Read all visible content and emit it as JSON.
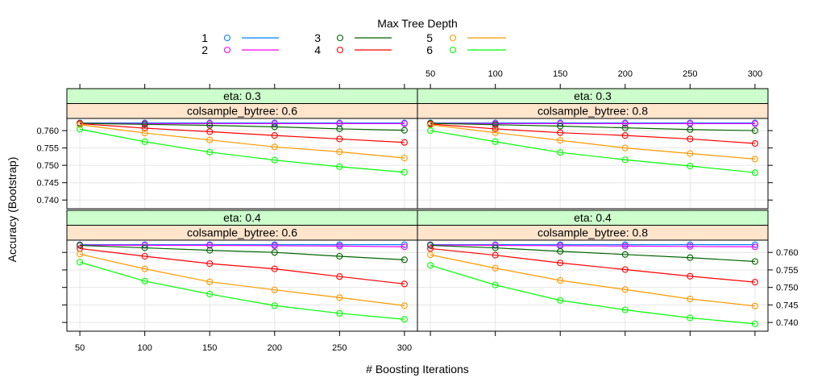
{
  "chart_data": {
    "type": "line",
    "legend": {
      "title": "Max Tree Depth",
      "placement": "top",
      "entries": [
        {
          "label": "1",
          "color": "#0080ff"
        },
        {
          "label": "2",
          "color": "#ff00ff"
        },
        {
          "label": "3",
          "color": "#006400"
        },
        {
          "label": "4",
          "color": "#ff0000"
        },
        {
          "label": "5",
          "color": "#ff9900"
        },
        {
          "label": "6",
          "color": "#00ff00"
        }
      ]
    },
    "xlabel": "# Boosting Iterations",
    "ylabel": "Accuracy (Bootstrap)",
    "x": [
      50,
      100,
      150,
      200,
      250,
      300
    ],
    "x_ticks": [
      "50",
      "100",
      "150",
      "200",
      "250",
      "300"
    ],
    "y_ticks": [
      "0.740",
      "0.745",
      "0.750",
      "0.755",
      "0.760"
    ],
    "y_tick_values": [
      0.74,
      0.745,
      0.75,
      0.755,
      0.76
    ],
    "xlim": [
      40,
      310
    ],
    "ylim": [
      0.7375,
      0.7635
    ],
    "grid": true,
    "strip_colors": {
      "eta": "#ccffcc",
      "colsample": "#ffe5cc"
    },
    "panels": [
      {
        "eta": "eta: 0.3",
        "colsample": "colsample_bytree: 0.6",
        "series": [
          {
            "name": "1",
            "values": [
              0.7622,
              0.7622,
              0.7622,
              0.7622,
              0.7622,
              0.7622
            ]
          },
          {
            "name": "2",
            "values": [
              0.7621,
              0.762,
              0.762,
              0.762,
              0.762,
              0.762
            ]
          },
          {
            "name": "3",
            "values": [
              0.7621,
              0.7618,
              0.7615,
              0.7611,
              0.7605,
              0.7601
            ]
          },
          {
            "name": "4",
            "values": [
              0.762,
              0.7607,
              0.7597,
              0.7586,
              0.7576,
              0.7566
            ]
          },
          {
            "name": "5",
            "values": [
              0.7617,
              0.7593,
              0.7573,
              0.7553,
              0.7539,
              0.7521
            ]
          },
          {
            "name": "6",
            "values": [
              0.7604,
              0.7568,
              0.7538,
              0.7515,
              0.7496,
              0.748
            ]
          }
        ]
      },
      {
        "eta": "eta: 0.3",
        "colsample": "colsample_bytree: 0.8",
        "series": [
          {
            "name": "1",
            "values": [
              0.7622,
              0.7622,
              0.7622,
              0.7622,
              0.7622,
              0.7622
            ]
          },
          {
            "name": "2",
            "values": [
              0.7621,
              0.762,
              0.762,
              0.762,
              0.762,
              0.762
            ]
          },
          {
            "name": "3",
            "values": [
              0.7621,
              0.7617,
              0.7613,
              0.7608,
              0.7603,
              0.76
            ]
          },
          {
            "name": "4",
            "values": [
              0.7619,
              0.7605,
              0.7594,
              0.7586,
              0.7576,
              0.7563
            ]
          },
          {
            "name": "5",
            "values": [
              0.7617,
              0.7594,
              0.7572,
              0.755,
              0.7534,
              0.7518
            ]
          },
          {
            "name": "6",
            "values": [
              0.76,
              0.7568,
              0.7537,
              0.7516,
              0.7498,
              0.7479
            ]
          }
        ]
      },
      {
        "eta": "eta: 0.4",
        "colsample": "colsample_bytree: 0.6",
        "series": [
          {
            "name": "1",
            "values": [
              0.7622,
              0.7622,
              0.7622,
              0.7622,
              0.7622,
              0.7622
            ]
          },
          {
            "name": "2",
            "values": [
              0.7621,
              0.762,
              0.762,
              0.7619,
              0.7618,
              0.7616
            ]
          },
          {
            "name": "3",
            "values": [
              0.762,
              0.7613,
              0.7606,
              0.76,
              0.7589,
              0.7579
            ]
          },
          {
            "name": "4",
            "values": [
              0.7611,
              0.7589,
              0.7568,
              0.7553,
              0.7531,
              0.751
            ]
          },
          {
            "name": "5",
            "values": [
              0.7595,
              0.7553,
              0.7516,
              0.7493,
              0.7471,
              0.7448
            ]
          },
          {
            "name": "6",
            "values": [
              0.7572,
              0.7518,
              0.7481,
              0.7448,
              0.7426,
              0.7409
            ]
          }
        ]
      },
      {
        "eta": "eta: 0.4",
        "colsample": "colsample_bytree: 0.8",
        "series": [
          {
            "name": "1",
            "values": [
              0.7622,
              0.7622,
              0.7622,
              0.7622,
              0.7622,
              0.7622
            ]
          },
          {
            "name": "2",
            "values": [
              0.7621,
              0.762,
              0.7619,
              0.7618,
              0.7617,
              0.7616
            ]
          },
          {
            "name": "3",
            "values": [
              0.762,
              0.7613,
              0.7603,
              0.7594,
              0.7585,
              0.7574
            ]
          },
          {
            "name": "4",
            "values": [
              0.7611,
              0.7592,
              0.757,
              0.7551,
              0.7532,
              0.7515
            ]
          },
          {
            "name": "5",
            "values": [
              0.7593,
              0.7555,
              0.752,
              0.7494,
              0.7467,
              0.7447
            ]
          },
          {
            "name": "6",
            "values": [
              0.7563,
              0.7507,
              0.7463,
              0.7436,
              0.7413,
              0.7396
            ]
          }
        ]
      }
    ]
  }
}
